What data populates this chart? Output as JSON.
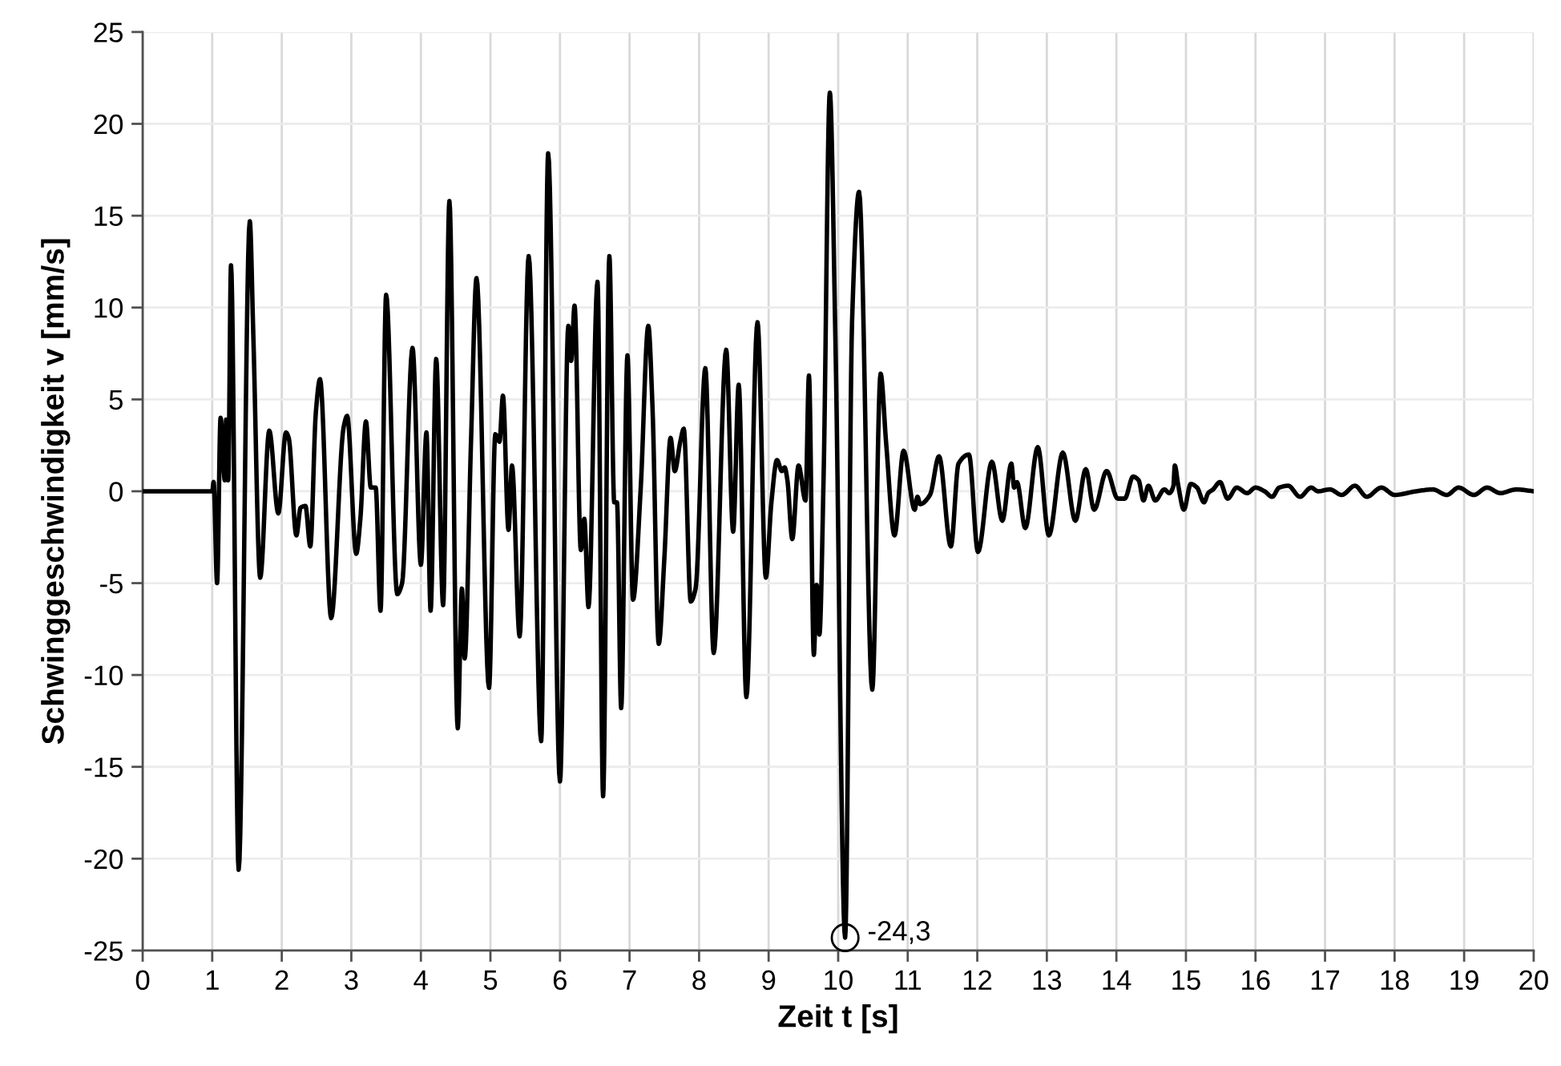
{
  "chart_data": {
    "type": "line",
    "xlabel": "Zeit t [s]",
    "ylabel": "Schwinggeschwindigkeit v [mm/s]",
    "x": [
      0,
      1.0,
      1.02,
      1.07,
      1.12,
      1.18,
      1.2,
      1.23,
      1.27,
      1.38,
      1.54,
      1.59,
      1.69,
      1.82,
      1.95,
      2.06,
      2.1,
      2.21,
      2.27,
      2.34,
      2.41,
      2.49,
      2.55,
      2.71,
      2.89,
      2.94,
      3.07,
      3.13,
      3.21,
      3.28,
      3.35,
      3.42,
      3.5,
      3.66,
      3.73,
      3.88,
      4.0,
      4.08,
      4.14,
      4.22,
      4.32,
      4.41,
      4.53,
      4.59,
      4.63,
      4.72,
      4.8,
      4.98,
      5.07,
      5.13,
      5.18,
      5.26,
      5.31,
      5.42,
      5.55,
      5.73,
      5.83,
      6.0,
      6.12,
      6.16,
      6.21,
      6.3,
      6.35,
      6.41,
      6.54,
      6.62,
      6.71,
      6.78,
      6.82,
      6.88,
      6.97,
      7.05,
      7.16,
      7.27,
      7.33,
      7.42,
      7.5,
      7.59,
      7.65,
      7.73,
      7.78,
      7.88,
      7.95,
      8.09,
      8.21,
      8.39,
      8.49,
      8.57,
      8.68,
      8.84,
      8.96,
      9.04,
      9.12,
      9.19,
      9.23,
      9.27,
      9.34,
      9.43,
      9.53,
      9.58,
      9.65,
      9.69,
      9.73,
      9.79,
      9.88,
      9.96,
      10.1,
      10.2,
      10.3,
      10.49,
      10.61,
      10.69,
      10.81,
      10.94,
      11.1,
      11.14,
      11.18,
      11.32,
      11.45,
      11.62,
      11.73,
      11.88,
      12.01,
      12.21,
      12.36,
      12.49,
      12.53,
      12.57,
      12.69,
      12.87,
      13.03,
      13.23,
      13.41,
      13.56,
      13.68,
      13.86,
      14.02,
      14.12,
      14.24,
      14.32,
      14.39,
      14.46,
      14.56,
      14.69,
      14.76,
      14.82,
      14.84,
      14.89,
      14.97,
      15.07,
      15.16,
      15.26,
      15.32,
      15.39,
      15.49,
      15.6,
      15.73,
      15.88,
      16.0,
      16.13,
      16.24,
      16.34,
      16.47,
      16.64,
      16.8,
      16.9,
      17.07,
      17.24,
      17.43,
      17.6,
      17.81,
      18.0,
      18.31,
      18.55,
      18.75,
      18.92,
      19.14,
      19.33,
      19.52,
      19.75,
      20.0
    ],
    "series": [
      {
        "color": "#000000",
        "values": [
          0,
          0,
          0.5,
          -5.0,
          4.0,
          0.6,
          3.9,
          0.6,
          12.3,
          -20.6,
          14.7,
          8.6,
          -4.7,
          3.3,
          -1.2,
          3.2,
          2.9,
          -2.4,
          -0.9,
          -0.8,
          -3.0,
          4.3,
          6.1,
          -6.9,
          3.5,
          4.1,
          -3.4,
          -1.5,
          3.8,
          0.2,
          0.2,
          -6.5,
          10.7,
          -5.6,
          -5.0,
          7.8,
          -4.0,
          3.2,
          -6.5,
          7.2,
          -6.2,
          15.8,
          -12.9,
          -5.3,
          -9.1,
          2.6,
          11.6,
          -10.7,
          3.1,
          2.7,
          5.2,
          -2.1,
          1.4,
          -7.9,
          12.8,
          -13.6,
          18.4,
          -15.8,
          9.0,
          7.1,
          10.1,
          -3.2,
          -1.5,
          -6.3,
          11.4,
          -16.6,
          12.8,
          -0.6,
          -0.6,
          -11.8,
          7.4,
          -5.9,
          0.1,
          9.0,
          4.6,
          -8.3,
          -3.7,
          2.9,
          1.1,
          2.7,
          3.4,
          -6.0,
          -5.3,
          6.7,
          -8.8,
          7.7,
          -2.2,
          5.8,
          -11.2,
          9.2,
          -4.7,
          -0.6,
          1.7,
          1.1,
          1.3,
          0.6,
          -2.6,
          1.4,
          -0.5,
          6.3,
          -8.9,
          -5.1,
          -7.8,
          0.7,
          21.7,
          8.3,
          -24.3,
          9.3,
          16.3,
          -10.8,
          6.4,
          2.6,
          -2.4,
          2.2,
          -1.0,
          -0.3,
          -0.7,
          -0.2,
          1.9,
          -3.0,
          1.5,
          2.0,
          -3.3,
          1.6,
          -1.6,
          1.5,
          0.2,
          0.5,
          -2.0,
          2.4,
          -2.4,
          2.1,
          -1.6,
          1.2,
          -1.0,
          1.1,
          -0.4,
          -0.4,
          0.8,
          0.6,
          -0.5,
          0.3,
          -0.5,
          0.1,
          -0.1,
          0.3,
          1.4,
          0.3,
          -1.0,
          0.4,
          0.2,
          -0.6,
          -0.1,
          0.1,
          0.5,
          -0.4,
          0.2,
          -0.1,
          0.2,
          0.0,
          -0.3,
          0.2,
          0.3,
          -0.3,
          0.2,
          0.0,
          0.1,
          -0.2,
          0.3,
          -0.3,
          0.2,
          -0.2,
          0.0,
          0.1,
          -0.2,
          0.2,
          -0.2,
          0.2,
          -0.1,
          0.1,
          0.0
        ]
      }
    ],
    "xlim": [
      0,
      20
    ],
    "ylim": [
      -25,
      25
    ],
    "xticks": [
      0,
      1,
      2,
      3,
      4,
      5,
      6,
      7,
      8,
      9,
      10,
      11,
      12,
      13,
      14,
      15,
      16,
      17,
      18,
      19,
      20
    ],
    "yticks": [
      -25,
      -20,
      -15,
      -10,
      -5,
      0,
      5,
      10,
      15,
      20,
      25
    ],
    "grid": true,
    "annotations": [
      {
        "text": "-24,3",
        "x": 10.1,
        "y": -24.3
      }
    ]
  }
}
